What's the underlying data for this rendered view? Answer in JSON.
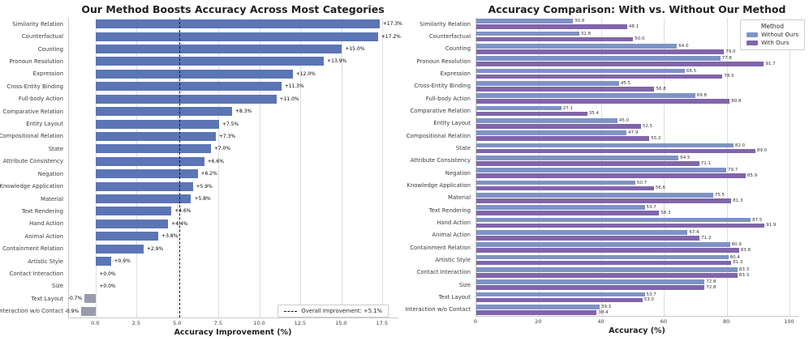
{
  "chart_data": [
    {
      "type": "bar",
      "orientation": "horizontal",
      "title": "Our Method Boosts Accuracy Across Most Categories",
      "xlabel": "Accuracy Improvement (%)",
      "categories": [
        "Similarity Relation",
        "Counterfactual",
        "Counting",
        "Pronoun Resolution",
        "Expression",
        "Cross-Entity Binding",
        "Full-body Action",
        "Comparative Relation",
        "Entity Layout",
        "Compositional Relation",
        "State",
        "Attribute Consistency",
        "Negation",
        "Knowledge Application",
        "Material",
        "Text Rendering",
        "Hand Action",
        "Animal Action",
        "Containment Relation",
        "Artistic Style",
        "Contact Interaction",
        "Size",
        "Text Layout",
        "Interaction w/o Contact"
      ],
      "values": [
        17.3,
        17.2,
        15.0,
        13.9,
        12.0,
        11.3,
        11.0,
        8.3,
        7.5,
        7.3,
        7.0,
        6.6,
        6.2,
        5.9,
        5.8,
        4.6,
        4.4,
        3.8,
        2.9,
        0.9,
        0.0,
        0.0,
        -0.7,
        -0.9
      ],
      "value_labels": [
        "+17.3%",
        "+17.2%",
        "+15.0%",
        "+13.9%",
        "+12.0%",
        "+11.3%",
        "+11.0%",
        "+8.3%",
        "+7.5%",
        "+7.3%",
        "+7.0%",
        "+6.6%",
        "+6.2%",
        "+5.9%",
        "+5.8%",
        "+4.6%",
        "+4.4%",
        "+3.8%",
        "+2.9%",
        "+0.9%",
        "+0.0%",
        "+0.0%",
        "-0.7%",
        "-0.9%"
      ],
      "xlim": [
        -1.65,
        18.45
      ],
      "xticks": [
        0,
        2.5,
        5,
        7.5,
        10,
        12.5,
        15,
        17.5
      ],
      "xtick_labels": [
        "0.0",
        "2.5",
        "5.0",
        "7.5",
        "10.0",
        "12.5",
        "15.0",
        "17.5"
      ],
      "bar_color_positive": "#5b75b5",
      "bar_color_negative": "#9a9cab",
      "grid": true,
      "legend_position": "lower right",
      "reference_line": {
        "value": 5.1,
        "style": "dashed",
        "color": "#141414",
        "label": "Overall Improvement: +5.1%"
      }
    },
    {
      "type": "bar",
      "orientation": "horizontal",
      "title": "Accuracy Comparison: With vs. Without Our Method",
      "xlabel": "Accuracy (%)",
      "categories": [
        "Similarity Relation",
        "Counterfactual",
        "Counting",
        "Pronoun Resolution",
        "Expression",
        "Cross-Entity Binding",
        "Full-body Action",
        "Comparative Relation",
        "Entity Layout",
        "Compositional Relation",
        "State",
        "Attribute Consistency",
        "Negation",
        "Knowledge Application",
        "Material",
        "Text Rendering",
        "Hand Action",
        "Animal Action",
        "Containment Relation",
        "Artistic Style",
        "Contact Interaction",
        "Size",
        "Text Layout",
        "Interaction w/o Contact"
      ],
      "series": [
        {
          "name": "Without Ours",
          "color": "#7e93c5",
          "values": [
            30.8,
            32.8,
            64.0,
            77.8,
            66.5,
            45.5,
            69.8,
            27.1,
            45.0,
            47.9,
            82.0,
            64.5,
            79.7,
            50.7,
            75.5,
            53.7,
            87.5,
            67.4,
            80.9,
            80.4,
            83.3,
            72.8,
            53.7,
            39.3
          ]
        },
        {
          "name": "With Ours",
          "color": "#8165ab",
          "values": [
            48.1,
            50.0,
            79.0,
            91.7,
            78.5,
            56.8,
            80.8,
            35.4,
            52.5,
            55.2,
            89.0,
            71.1,
            85.9,
            56.6,
            81.3,
            58.3,
            91.9,
            71.2,
            83.8,
            81.3,
            83.3,
            72.8,
            53.0,
            38.4
          ]
        }
      ],
      "xlim": [
        0,
        103
      ],
      "xticks": [
        0,
        20,
        40,
        60,
        80,
        100
      ],
      "xtick_labels": [
        "0",
        "20",
        "40",
        "60",
        "80",
        "100"
      ],
      "legend_title": "Method",
      "legend_position": "upper right",
      "grid": true
    }
  ]
}
